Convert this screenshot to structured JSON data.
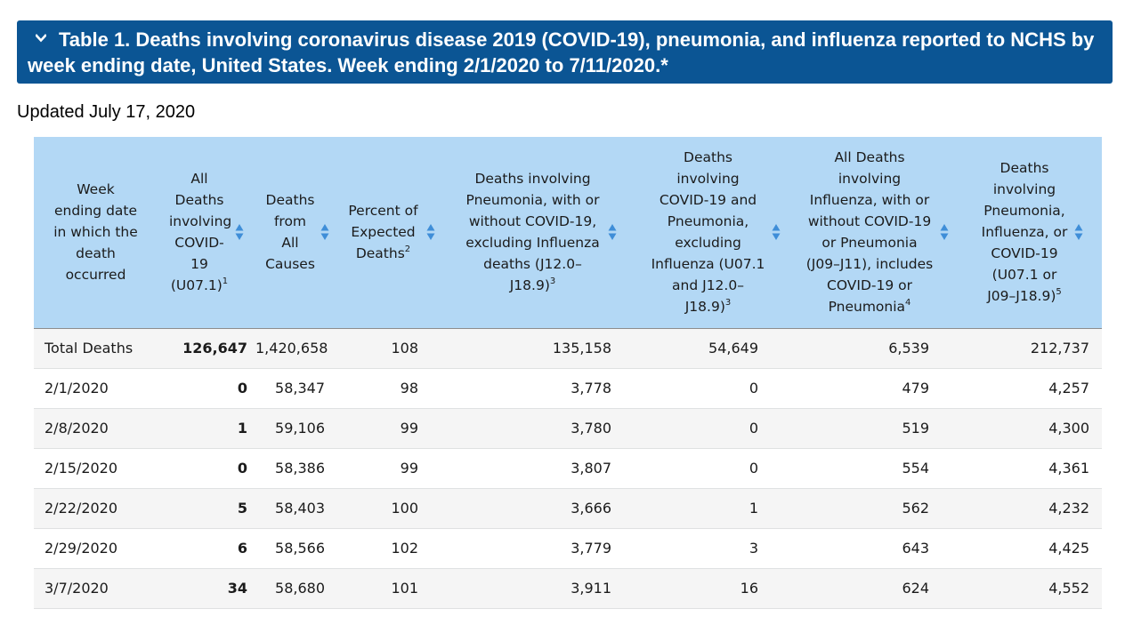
{
  "banner": {
    "title": "Table 1. Deaths involving coronavirus disease 2019 (COVID-19), pneumonia, and influenza reported to NCHS by week ending date, United States. Week ending 2/1/2020 to 7/11/2020.*",
    "icon": "chevron-down-icon"
  },
  "updated": "Updated July 17, 2020",
  "colors": {
    "banner_bg": "#0b5594",
    "header_bg": "#b3d8f5",
    "sort_icon": "#3f8ed8",
    "row_alt": "#f5f5f5"
  },
  "table": {
    "headers": [
      {
        "label": "Week ending date in which the death occurred",
        "sup": ""
      },
      {
        "label": "All Deaths involving COVID-19 (U07.1)",
        "sup": "1"
      },
      {
        "label": "Deaths from All Causes",
        "sup": ""
      },
      {
        "label": "Percent of Expected Deaths",
        "sup": "2"
      },
      {
        "label": "Deaths involving Pneumonia, with or without COVID-19, excluding Influenza deaths (J12.0–J18.9)",
        "sup": "3"
      },
      {
        "label": "Deaths involving COVID-19 and Pneumonia, excluding Influenza (U07.1 and J12.0–J18.9)",
        "sup": "3"
      },
      {
        "label": "All Deaths involving Influenza, with or without COVID-19 or Pneumonia (J09–J11), includes COVID-19 or Pneumonia",
        "sup": "4"
      },
      {
        "label": "Deaths involving Pneumonia, Influenza, or COVID-19 (U07.1 or J09–J18.9)",
        "sup": "5"
      }
    ],
    "rows": [
      [
        "Total Deaths",
        "126,647",
        "1,420,658",
        "108",
        "135,158",
        "54,649",
        "6,539",
        "212,737"
      ],
      [
        "2/1/2020",
        "0",
        "58,347",
        "98",
        "3,778",
        "0",
        "479",
        "4,257"
      ],
      [
        "2/8/2020",
        "1",
        "59,106",
        "99",
        "3,780",
        "0",
        "519",
        "4,300"
      ],
      [
        "2/15/2020",
        "0",
        "58,386",
        "99",
        "3,807",
        "0",
        "554",
        "4,361"
      ],
      [
        "2/22/2020",
        "5",
        "58,403",
        "100",
        "3,666",
        "1",
        "562",
        "4,232"
      ],
      [
        "2/29/2020",
        "6",
        "58,566",
        "102",
        "3,779",
        "3",
        "643",
        "4,425"
      ],
      [
        "3/7/2020",
        "34",
        "58,680",
        "101",
        "3,911",
        "16",
        "624",
        "4,552"
      ]
    ]
  }
}
